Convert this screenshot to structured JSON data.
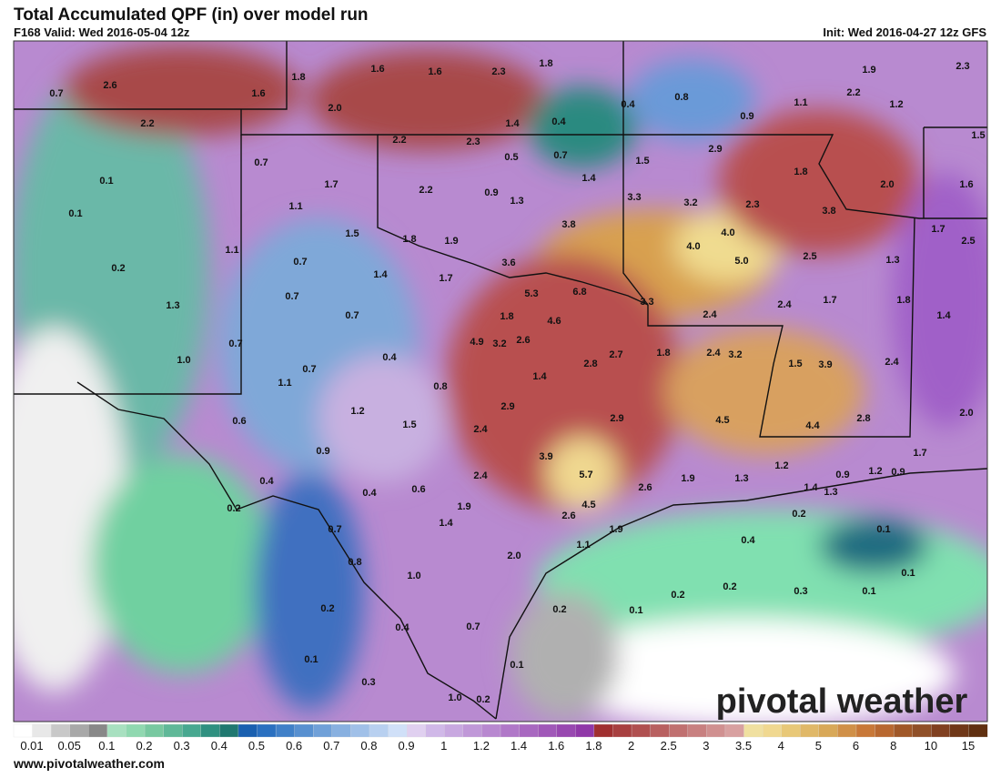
{
  "header": {
    "title": "Total Accumulated QPF (in) over model run",
    "valid": "F168 Valid: Wed 2016-05-04 12z",
    "init": "Init: Wed 2016-04-27 12z GFS"
  },
  "map_labels": [
    "0.7",
    "2.6",
    "1.6",
    "1.8",
    "1.6",
    "1.6",
    "2.3",
    "1.8",
    "0.4",
    "0.8",
    "0.9",
    "1.1",
    "1.9",
    "2.3",
    "2.2",
    "1.2",
    "2.0",
    "2.2",
    "1.4",
    "0.4",
    "1.5",
    "2.2",
    "2.3",
    "0.5",
    "0.7",
    "1.5",
    "2.9",
    "0.1",
    "0.7",
    "1.7",
    "2.2",
    "0.9",
    "1.3",
    "1.4",
    "1.8",
    "2.0",
    "1.6",
    "0.1",
    "1.1",
    "3.3",
    "3.2",
    "2.3",
    "3.8",
    "1.5",
    "1.8",
    "1.9",
    "3.8",
    "4.0",
    "4.0",
    "1.7",
    "2.5",
    "1.1",
    "0.2",
    "0.7",
    "3.6",
    "5.0",
    "2.5",
    "1.3",
    "1.4",
    "1.7",
    "5.3",
    "6.8",
    "3.3",
    "1.3",
    "0.7",
    "1.7",
    "1.8",
    "2.4",
    "1.8",
    "4.6",
    "0.7",
    "2.4",
    "1.4",
    "0.7",
    "4.9",
    "3.2",
    "2.6",
    "2.7",
    "1.8",
    "2.4",
    "3.2",
    "1.0",
    "0.4",
    "2.8",
    "1.5",
    "3.9",
    "2.4",
    "0.7",
    "1.4",
    "1.1",
    "0.8",
    "1.2",
    "2.9",
    "2.9",
    "4.5",
    "4.4",
    "2.8",
    "2.0",
    "0.6",
    "1.5",
    "2.4",
    "0.9",
    "1.7",
    "3.9",
    "1.2",
    "0.4",
    "2.4",
    "5.7",
    "2.6",
    "1.9",
    "1.3",
    "1.4",
    "1.3",
    "0.9",
    "1.2",
    "0.9",
    "0.4",
    "0.6",
    "1.9",
    "4.5",
    "0.2",
    "2.6",
    "1.9",
    "0.2",
    "0.1",
    "1.4",
    "0.7",
    "1.1",
    "0.4",
    "0.8",
    "2.0",
    "1.0",
    "0.1",
    "0.2",
    "0.2",
    "0.3",
    "0.1",
    "0.2",
    "0.2",
    "0.1",
    "0.4",
    "0.7",
    "0.1",
    "0.1",
    "0.3",
    "1.0",
    "0.2"
  ],
  "legend": {
    "labels": [
      "0.01",
      "0.05",
      "0.1",
      "0.2",
      "0.3",
      "0.4",
      "0.5",
      "0.6",
      "0.7",
      "0.8",
      "0.9",
      "1",
      "1.2",
      "1.4",
      "1.6",
      "1.8",
      "2",
      "2.5",
      "3",
      "3.5",
      "4",
      "5",
      "6",
      "8",
      "10",
      "15"
    ]
  },
  "logo": "pivotal weather",
  "footer": "www.pivotalweather.com"
}
